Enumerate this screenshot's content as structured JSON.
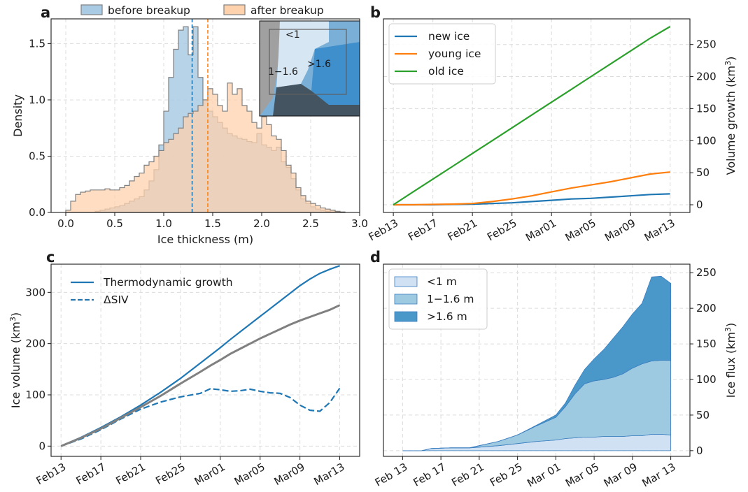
{
  "panels": {
    "a": "a",
    "b": "b",
    "c": "c",
    "d": "d"
  },
  "chart_data": [
    {
      "panel": "a",
      "type": "area",
      "subtype": "step-histogram",
      "xlabel": "Ice thickness (m)",
      "ylabel": "Density",
      "xlim": [
        -0.15,
        3.0
      ],
      "ylim": [
        0,
        1.72
      ],
      "xticks": [
        "0.0",
        "0.5",
        "1.0",
        "1.5",
        "2.0",
        "2.5",
        "3.0"
      ],
      "yticks": [
        "0.0",
        "0.5",
        "1.0",
        "1.5"
      ],
      "grid": true,
      "legend": "top, outside",
      "bin_edges": [
        0.0,
        0.05,
        0.1,
        0.15,
        0.2,
        0.25,
        0.3,
        0.35,
        0.4,
        0.45,
        0.5,
        0.55,
        0.6,
        0.65,
        0.7,
        0.75,
        0.8,
        0.85,
        0.9,
        0.95,
        1.0,
        1.05,
        1.1,
        1.15,
        1.2,
        1.25,
        1.3,
        1.35,
        1.4,
        1.45,
        1.5,
        1.55,
        1.6,
        1.65,
        1.7,
        1.75,
        1.8,
        1.85,
        1.9,
        1.95,
        2.0,
        2.05,
        2.1,
        2.15,
        2.2,
        2.25,
        2.3,
        2.35,
        2.4,
        2.45,
        2.5,
        2.55,
        2.6,
        2.65,
        2.7,
        2.75,
        2.8,
        2.85
      ],
      "series": [
        {
          "name": "before breakup",
          "color": "#1f77b4",
          "fill": "#aacbe4",
          "values": [
            0,
            0,
            0,
            0,
            0,
            0,
            0.01,
            0.02,
            0.03,
            0.04,
            0.05,
            0.06,
            0.08,
            0.1,
            0.12,
            0.14,
            0.2,
            0.28,
            0.38,
            0.6,
            0.9,
            1.2,
            1.45,
            1.62,
            1.65,
            1.4,
            1.65,
            1.2,
            1.0,
            0.9,
            0.85,
            0.8,
            0.75,
            0.7,
            0.68,
            0.66,
            0.65,
            0.63,
            0.62,
            0.7,
            0.6,
            0.58,
            0.55,
            0.58,
            0.45,
            0.4,
            0.3,
            0.2,
            0.12,
            0.08,
            0.05,
            0.03,
            0.02,
            0.01,
            0.005,
            0.003,
            0.001
          ]
        },
        {
          "name": "after breakup",
          "color": "#ff7f0e",
          "fill": "#fdd2ad",
          "values": [
            0.02,
            0.1,
            0.16,
            0.18,
            0.19,
            0.2,
            0.2,
            0.2,
            0.21,
            0.2,
            0.2,
            0.22,
            0.24,
            0.28,
            0.32,
            0.35,
            0.42,
            0.45,
            0.5,
            0.55,
            0.62,
            0.65,
            0.7,
            0.75,
            0.85,
            0.88,
            0.9,
            0.95,
            1.0,
            1.1,
            1.05,
            0.95,
            0.9,
            1.15,
            1.05,
            1.1,
            0.95,
            0.9,
            0.8,
            0.75,
            0.85,
            0.78,
            0.68,
            0.65,
            0.55,
            0.42,
            0.35,
            0.22,
            0.15,
            0.1,
            0.08,
            0.06,
            0.04,
            0.03,
            0.02,
            0.01,
            0.005
          ]
        }
      ],
      "vlines": [
        {
          "name": "before breakup mean",
          "x": 1.29,
          "color": "#1f77b4"
        },
        {
          "name": "after breakup mean",
          "x": 1.45,
          "color": "#ff7f0e"
        }
      ],
      "inset_map": {
        "labels": [
          "<1",
          ">1.6",
          "1−1.6"
        ]
      }
    },
    {
      "panel": "b",
      "type": "line",
      "ylabel": "Volume growth (km³)",
      "ylabel_text": "Volume growth (km",
      "ylabel_sup": "3",
      "ylabel_end": ")",
      "y_axis_side": "right",
      "xlim": [
        -1,
        30
      ],
      "ylim": [
        -12,
        290
      ],
      "yticks": [
        "0",
        "50",
        "100",
        "150",
        "200",
        "250"
      ],
      "xticks": [
        "Feb13",
        "Feb17",
        "Feb21",
        "Feb25",
        "Mar01",
        "Mar05",
        "Mar09",
        "Mar13"
      ],
      "grid": true,
      "legend": "top-left",
      "x": [
        0,
        2,
        4,
        6,
        8,
        10,
        12,
        14,
        16,
        18,
        20,
        22,
        24,
        26,
        28
      ],
      "series": [
        {
          "name": "new ice",
          "color": "#1f77b4",
          "values": [
            0,
            0,
            0,
            0.5,
            1,
            2,
            3,
            5,
            7,
            9,
            10,
            12,
            14,
            16,
            17
          ]
        },
        {
          "name": "young ice",
          "color": "#ff7f0e",
          "values": [
            0,
            0,
            0.5,
            1,
            2,
            5,
            9,
            14,
            20,
            26,
            31,
            36,
            42,
            48,
            51
          ]
        },
        {
          "name": "old ice",
          "color": "#2ca02c",
          "values": [
            0,
            20,
            40,
            60,
            80,
            100,
            120,
            140,
            160,
            180,
            200,
            220,
            240,
            260,
            278
          ]
        }
      ]
    },
    {
      "panel": "c",
      "type": "line",
      "ylabel": "Ice volume (km³)",
      "ylabel_text": "Ice volume (km",
      "ylabel_sup": "3",
      "ylabel_end": ")",
      "xlim": [
        -1,
        30
      ],
      "ylim": [
        -20,
        355
      ],
      "yticks": [
        "0",
        "100",
        "200",
        "300"
      ],
      "xticks": [
        "Feb13",
        "Feb17",
        "Feb21",
        "Feb25",
        "Mar01",
        "Mar05",
        "Mar09",
        "Mar13"
      ],
      "grid": true,
      "legend": "top-left",
      "x": [
        0,
        2,
        4,
        6,
        8,
        10,
        12,
        14,
        15,
        16,
        17,
        18,
        19,
        20,
        21,
        22,
        23,
        24,
        25,
        26,
        27,
        28
      ],
      "series": [
        {
          "name": "Thermodynamic growth",
          "color": "#1f77b4",
          "style": "solid",
          "values": [
            0,
            17,
            36,
            57,
            80,
            105,
            132,
            162,
            177,
            192,
            208,
            223,
            238,
            253,
            268,
            283,
            298,
            313,
            326,
            337,
            345,
            352
          ]
        },
        {
          "name": "ΔSIV",
          "color": "#1f77b4",
          "style": "dashed",
          "values": [
            0,
            14,
            32,
            53,
            72,
            86,
            96,
            103,
            112,
            110,
            107,
            108,
            111,
            107,
            104,
            103,
            95,
            80,
            70,
            68,
            85,
            113
          ]
        },
        {
          "name": "",
          "color": "#808080",
          "style": "solid",
          "values": [
            0,
            16,
            34,
            55,
            76,
            98,
            122,
            145,
            157,
            168,
            180,
            190,
            200,
            210,
            219,
            228,
            237,
            245,
            252,
            259,
            266,
            275
          ]
        }
      ]
    },
    {
      "panel": "d",
      "type": "area",
      "subtype": "stacked",
      "ylabel": "Ice flux (km³)",
      "ylabel_text": "Ice flux (km",
      "ylabel_sup": "3",
      "ylabel_end": ")",
      "y_axis_side": "right",
      "xlim": [
        -2,
        30
      ],
      "ylim": [
        -8,
        262
      ],
      "yticks": [
        "0",
        "50",
        "100",
        "150",
        "200",
        "250"
      ],
      "xticks": [
        "Feb 13",
        "Feb 17",
        "Feb 21",
        "Feb 25",
        "Mar 01",
        "Mar 05",
        "Mar 09",
        "Mar 13"
      ],
      "grid": true,
      "legend": "top-left",
      "x": [
        0,
        2,
        3,
        5,
        7,
        8,
        10,
        12,
        14,
        16,
        17,
        18,
        19,
        20,
        21,
        22,
        23,
        24,
        25,
        26,
        27,
        28
      ],
      "series": [
        {
          "name": "<1 m",
          "color": "#cfe1f2",
          "values": [
            0,
            0,
            3,
            4,
            4,
            5,
            7,
            10,
            13,
            15,
            17,
            18,
            19,
            19,
            20,
            20,
            20,
            21,
            21,
            23,
            23,
            22
          ]
        },
        {
          "name": "1−1.6 m",
          "color": "#9ecae1",
          "values": [
            0,
            0,
            0,
            0,
            0,
            2,
            6,
            12,
            22,
            32,
            45,
            62,
            75,
            79,
            80,
            83,
            88,
            95,
            101,
            103,
            104,
            105
          ]
        },
        {
          "name": ">1.6 m",
          "color": "#4a98c9",
          "values": [
            0,
            0,
            0,
            0,
            0,
            0,
            0,
            0,
            1,
            3,
            5,
            12,
            20,
            31,
            42,
            55,
            66,
            76,
            85,
            118,
            118,
            108
          ]
        }
      ]
    }
  ]
}
